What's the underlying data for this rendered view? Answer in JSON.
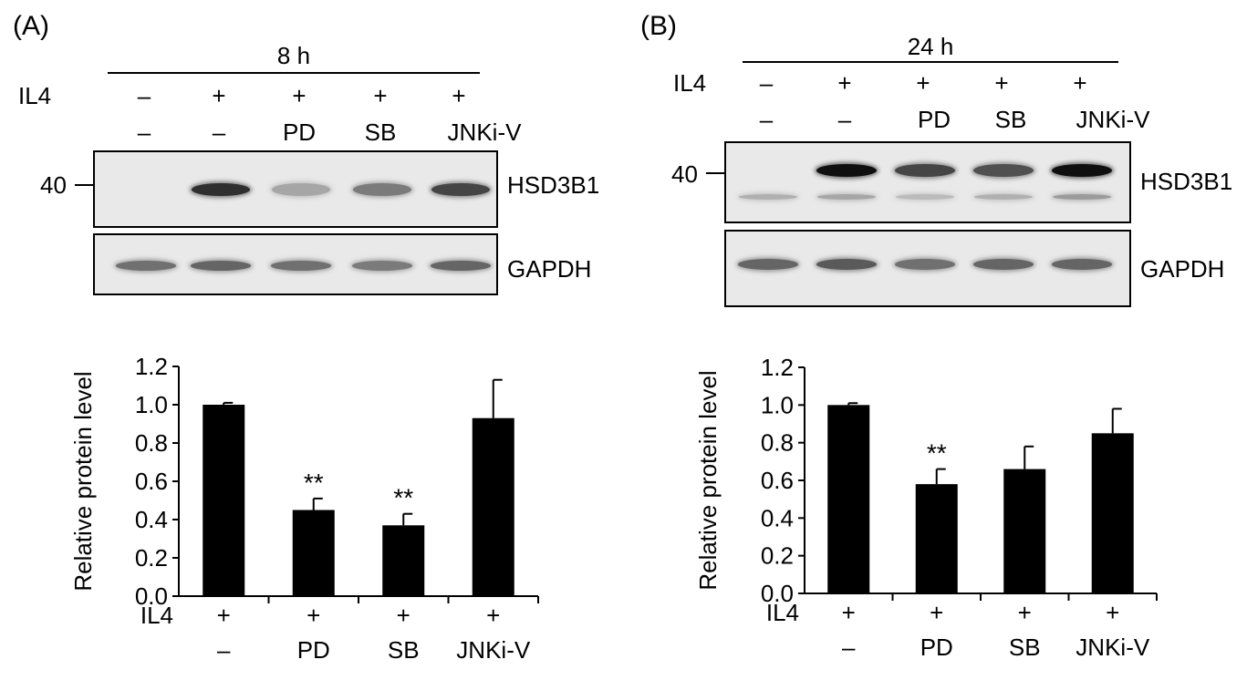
{
  "figure": {
    "panels": [
      {
        "letter": "(A)",
        "time": "8 h",
        "treatment_label": "IL4",
        "il4_row": [
          "–",
          "+",
          "+",
          "+",
          "+"
        ],
        "inhibitor_row": [
          "–",
          "–",
          "PD",
          "SB",
          "JNKi-V"
        ],
        "marker": "40",
        "blot_top_label": "HSD3B1",
        "blot_bottom_label": "GAPDH",
        "target_band_intensity": [
          0.0,
          0.85,
          0.3,
          0.5,
          0.75
        ],
        "target_lower_band_intensity": [
          0,
          0,
          0,
          0,
          0
        ],
        "gapdh_band_intensity": [
          0.55,
          0.6,
          0.55,
          0.5,
          0.6
        ]
      },
      {
        "letter": "(B)",
        "time": "24 h",
        "treatment_label": "IL4",
        "il4_row": [
          "–",
          "+",
          "+",
          "+",
          "+"
        ],
        "inhibitor_row": [
          "–",
          "–",
          "PD",
          "SB",
          "JNKi-V"
        ],
        "marker": "40",
        "blot_top_label": "HSD3B1",
        "blot_bottom_label": "GAPDH",
        "target_band_intensity": [
          0.0,
          1.0,
          0.75,
          0.7,
          1.0
        ],
        "target_lower_band_intensity": [
          0.25,
          0.3,
          0.2,
          0.25,
          0.35
        ],
        "gapdh_band_intensity": [
          0.6,
          0.65,
          0.55,
          0.6,
          0.6
        ]
      }
    ]
  },
  "chart_data": [
    {
      "type": "bar",
      "panel": "(A)",
      "ylabel": "Relative protein level",
      "ylim": [
        0.0,
        1.2
      ],
      "yticks": [
        "0.0",
        "0.2",
        "0.4",
        "0.6",
        "0.8",
        "1.0",
        "1.2"
      ],
      "x_row_label": "IL4",
      "il4_row": [
        "+",
        "+",
        "+",
        "+"
      ],
      "inhibitor_row": [
        "–",
        "PD",
        "SB",
        "JNKi-V"
      ],
      "values": [
        1.0,
        0.45,
        0.37,
        0.93
      ],
      "errors": [
        0.01,
        0.06,
        0.06,
        0.2
      ],
      "annotations": [
        "",
        "**",
        "**",
        ""
      ],
      "bar_color": "#000000"
    },
    {
      "type": "bar",
      "panel": "(B)",
      "ylabel": "Relative protein level",
      "ylim": [
        0.0,
        1.2
      ],
      "yticks": [
        "0.0",
        "0.2",
        "0.4",
        "0.6",
        "0.8",
        "1.0",
        "1.2"
      ],
      "x_row_label": "IL4",
      "il4_row": [
        "+",
        "+",
        "+",
        "+"
      ],
      "inhibitor_row": [
        "–",
        "PD",
        "SB",
        "JNKi-V"
      ],
      "values": [
        1.0,
        0.58,
        0.66,
        0.85
      ],
      "errors": [
        0.01,
        0.08,
        0.12,
        0.13
      ],
      "annotations": [
        "",
        "**",
        "",
        ""
      ],
      "bar_color": "#000000"
    }
  ]
}
